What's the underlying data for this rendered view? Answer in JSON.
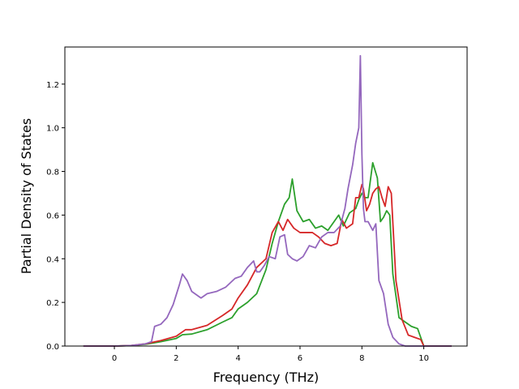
{
  "chart_data": {
    "type": "line",
    "title": "",
    "xlabel": "Frequency (THz)",
    "ylabel": "Partial Density of States",
    "xlim": [
      -1.6,
      11.4
    ],
    "ylim": [
      0.0,
      1.37
    ],
    "xticks": [
      0,
      2,
      4,
      6,
      8,
      10
    ],
    "yticks": [
      0.0,
      0.2,
      0.4,
      0.6,
      0.8,
      1.0,
      1.2
    ],
    "xtick_labels": [
      "0",
      "2",
      "4",
      "6",
      "8",
      "10"
    ],
    "ytick_labels": [
      "0.0",
      "0.2",
      "0.4",
      "0.6",
      "0.8",
      "1.0",
      "1.2"
    ],
    "grid": false,
    "legend": "none",
    "series": [
      {
        "color": "#2ca02c",
        "x": [
          -1.0,
          0.0,
          0.5,
          1.0,
          1.5,
          2.0,
          2.2,
          2.5,
          3.0,
          3.5,
          3.8,
          4.0,
          4.3,
          4.6,
          4.9,
          5.1,
          5.3,
          5.5,
          5.65,
          5.75,
          5.9,
          6.1,
          6.3,
          6.5,
          6.7,
          6.9,
          7.1,
          7.25,
          7.4,
          7.6,
          7.8,
          7.9,
          8.0,
          8.1,
          8.2,
          8.35,
          8.5,
          8.6,
          8.7,
          8.8,
          8.9,
          9.0,
          9.2,
          9.4,
          9.6,
          9.8,
          10.0,
          10.5,
          10.9
        ],
        "y": [
          0.0,
          0.0,
          0.002,
          0.008,
          0.02,
          0.035,
          0.052,
          0.055,
          0.075,
          0.11,
          0.13,
          0.17,
          0.2,
          0.24,
          0.35,
          0.47,
          0.57,
          0.65,
          0.68,
          0.765,
          0.62,
          0.57,
          0.58,
          0.54,
          0.55,
          0.53,
          0.57,
          0.6,
          0.55,
          0.61,
          0.63,
          0.67,
          0.7,
          0.68,
          0.68,
          0.84,
          0.77,
          0.57,
          0.59,
          0.62,
          0.6,
          0.33,
          0.13,
          0.11,
          0.09,
          0.08,
          0.0,
          0.0,
          0.0
        ]
      },
      {
        "color": "#d62728",
        "x": [
          -1.0,
          0.0,
          0.5,
          1.0,
          1.5,
          2.0,
          2.3,
          2.5,
          3.0,
          3.5,
          3.8,
          4.0,
          4.3,
          4.6,
          4.9,
          5.1,
          5.3,
          5.45,
          5.6,
          5.8,
          6.0,
          6.2,
          6.4,
          6.6,
          6.8,
          7.0,
          7.2,
          7.35,
          7.5,
          7.7,
          7.8,
          7.9,
          8.0,
          8.05,
          8.15,
          8.25,
          8.35,
          8.45,
          8.55,
          8.65,
          8.75,
          8.85,
          8.95,
          9.1,
          9.3,
          9.5,
          9.7,
          9.9,
          10.0,
          10.5,
          10.9
        ],
        "y": [
          0.0,
          0.0,
          0.002,
          0.01,
          0.025,
          0.045,
          0.075,
          0.075,
          0.095,
          0.14,
          0.17,
          0.22,
          0.28,
          0.36,
          0.4,
          0.52,
          0.57,
          0.53,
          0.58,
          0.54,
          0.52,
          0.52,
          0.52,
          0.5,
          0.47,
          0.46,
          0.47,
          0.58,
          0.54,
          0.56,
          0.68,
          0.68,
          0.74,
          0.72,
          0.62,
          0.65,
          0.7,
          0.72,
          0.73,
          0.68,
          0.64,
          0.73,
          0.7,
          0.3,
          0.12,
          0.05,
          0.04,
          0.03,
          0.0,
          0.0,
          0.0
        ]
      },
      {
        "color": "#9467bd",
        "x": [
          -1.0,
          0.0,
          0.5,
          1.0,
          1.2,
          1.3,
          1.5,
          1.7,
          1.9,
          2.1,
          2.2,
          2.35,
          2.5,
          2.8,
          3.0,
          3.3,
          3.6,
          3.9,
          4.1,
          4.3,
          4.5,
          4.6,
          4.7,
          4.85,
          5.0,
          5.2,
          5.35,
          5.5,
          5.6,
          5.75,
          5.9,
          6.1,
          6.3,
          6.5,
          6.7,
          6.9,
          7.1,
          7.3,
          7.45,
          7.55,
          7.7,
          7.8,
          7.9,
          7.95,
          8.0,
          8.05,
          8.1,
          8.2,
          8.35,
          8.45,
          8.55,
          8.7,
          8.85,
          9.0,
          9.2,
          9.4,
          9.7,
          10.0,
          10.5,
          10.9
        ],
        "y": [
          0.0,
          0.0,
          0.002,
          0.01,
          0.02,
          0.09,
          0.1,
          0.13,
          0.19,
          0.28,
          0.33,
          0.3,
          0.25,
          0.22,
          0.24,
          0.25,
          0.27,
          0.31,
          0.32,
          0.36,
          0.39,
          0.34,
          0.34,
          0.37,
          0.41,
          0.4,
          0.5,
          0.51,
          0.42,
          0.4,
          0.39,
          0.41,
          0.46,
          0.45,
          0.5,
          0.52,
          0.52,
          0.55,
          0.63,
          0.72,
          0.83,
          0.93,
          1.0,
          1.33,
          0.88,
          0.63,
          0.57,
          0.57,
          0.53,
          0.56,
          0.3,
          0.24,
          0.1,
          0.04,
          0.01,
          0.0,
          0.0,
          0.0,
          0.0,
          0.0
        ]
      }
    ]
  }
}
